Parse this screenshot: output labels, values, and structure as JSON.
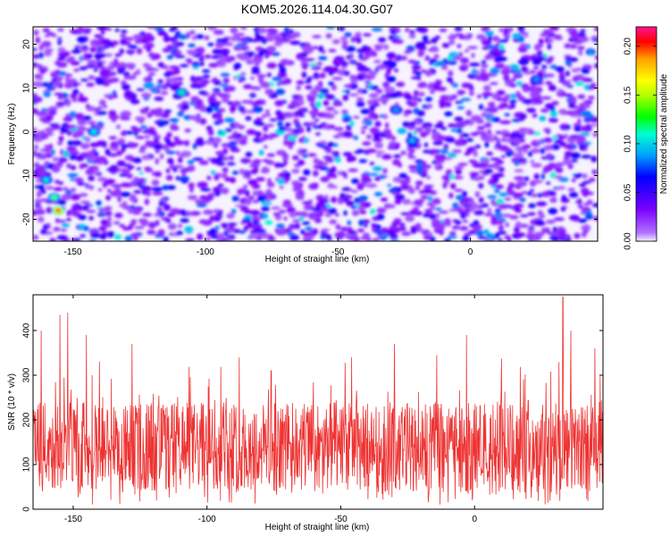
{
  "title": "KOM5.2026.114.04.30.G07",
  "chart_data": [
    {
      "type": "heatmap",
      "xlabel": "Height of straight line (km)",
      "ylabel": "Frequency (Hz)",
      "xlim": [
        -165,
        48
      ],
      "ylim": [
        -25,
        24
      ],
      "xticks": [
        -150,
        -100,
        -50,
        0
      ],
      "yticks": [
        -20,
        -10,
        0,
        10,
        20
      ],
      "colorbar": {
        "label": "Normalized spectral amplitude",
        "range": [
          0,
          0.22
        ],
        "ticks": [
          "0.00",
          "0.05",
          "0.10",
          "0.15",
          "0.20"
        ],
        "colors": [
          "#f0f0ff",
          "#7a00ff",
          "#0000ff",
          "#00a0ff",
          "#00ff00",
          "#ffff00",
          "#ff0000",
          "#ff1493"
        ]
      },
      "hotspots": [
        {
          "x": -155.5,
          "y": -18,
          "value": 0.21
        },
        {
          "x": -157,
          "y": -15,
          "value": 0.14
        },
        {
          "x": -160,
          "y": -11,
          "value": 0.11
        },
        {
          "x": -142,
          "y": 0,
          "value": 0.11
        },
        {
          "x": -109,
          "y": 9,
          "value": 0.12
        },
        {
          "x": -22,
          "y": -2,
          "value": 0.1
        },
        {
          "x": -28,
          "y": 5,
          "value": 0.09
        },
        {
          "x": 25,
          "y": 12,
          "value": 0.09
        }
      ]
    },
    {
      "type": "line",
      "xlabel": "Height of straight line (km)",
      "ylabel": "SNR (10 * v/v)",
      "xlim": [
        -165,
        48
      ],
      "ylim": [
        0,
        480
      ],
      "xticks": [
        -150,
        -100,
        -50,
        0
      ],
      "yticks": [
        0,
        100,
        200,
        300,
        400
      ],
      "line_color": "#ee3333",
      "peaks": [
        {
          "x": -162,
          "y": 400
        },
        {
          "x": -155,
          "y": 435
        },
        {
          "x": -152,
          "y": 440
        },
        {
          "x": -145,
          "y": 390
        },
        {
          "x": -128,
          "y": 370
        },
        {
          "x": -88,
          "y": 340
        },
        {
          "x": -76,
          "y": 310
        },
        {
          "x": -46,
          "y": 340
        },
        {
          "x": -30,
          "y": 370
        },
        {
          "x": -3,
          "y": 390
        },
        {
          "x": 33,
          "y": 475
        },
        {
          "x": 36,
          "y": 400
        },
        {
          "x": 45,
          "y": 360
        }
      ],
      "typical_range": [
        40,
        240
      ]
    }
  ]
}
